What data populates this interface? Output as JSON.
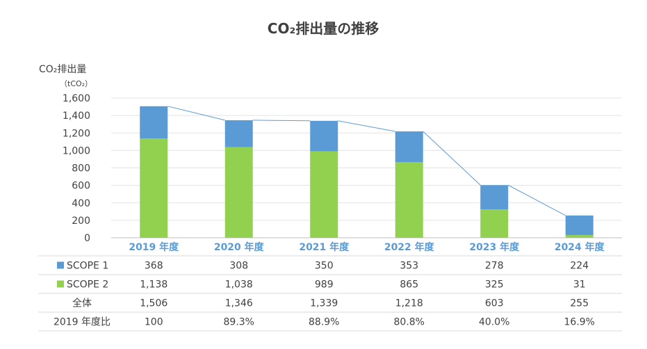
{
  "chart_data": {
    "type": "bar",
    "stacked": true,
    "title": "CO₂排出量の推移",
    "ylabel": "CO₂排出量",
    "yunit": "（tCO₂）",
    "ylim": [
      0,
      1600
    ],
    "yticks": [
      "0",
      "200",
      "400",
      "600",
      "800",
      "1,000",
      "1,200",
      "1,400",
      "1,600"
    ],
    "grid": true,
    "categories": [
      "2019 年度",
      "2020 年度",
      "2021 年度",
      "2022 年度",
      "2023 年度",
      "2024 年度"
    ],
    "series": [
      {
        "name": "SCOPE 1",
        "color": "#5b9bd5",
        "values": [
          368,
          308,
          350,
          353,
          278,
          224
        ]
      },
      {
        "name": "SCOPE 2",
        "color": "#92d050",
        "values": [
          1138,
          1038,
          989,
          865,
          325,
          31
        ]
      }
    ],
    "total_line": {
      "values": [
        1506,
        1346,
        1339,
        1218,
        603,
        255
      ],
      "color": "#5b9bd5"
    },
    "table": {
      "rows": [
        {
          "label": "SCOPE 1",
          "legend_color": "#5b9bd5",
          "cells": [
            "368",
            "308",
            "350",
            "353",
            "278",
            "224"
          ]
        },
        {
          "label": "SCOPE 2",
          "legend_color": "#92d050",
          "cells": [
            "1,138",
            "1,038",
            "989",
            "865",
            "325",
            "31"
          ]
        },
        {
          "label": "全体",
          "cells": [
            "1,506",
            "1,346",
            "1,339",
            "1,218",
            "603",
            "255"
          ]
        },
        {
          "label": "2019 年度比",
          "cells": [
            "100",
            "89.3%",
            "88.9%",
            "80.8%",
            "40.0%",
            "16.9%"
          ]
        }
      ]
    }
  }
}
